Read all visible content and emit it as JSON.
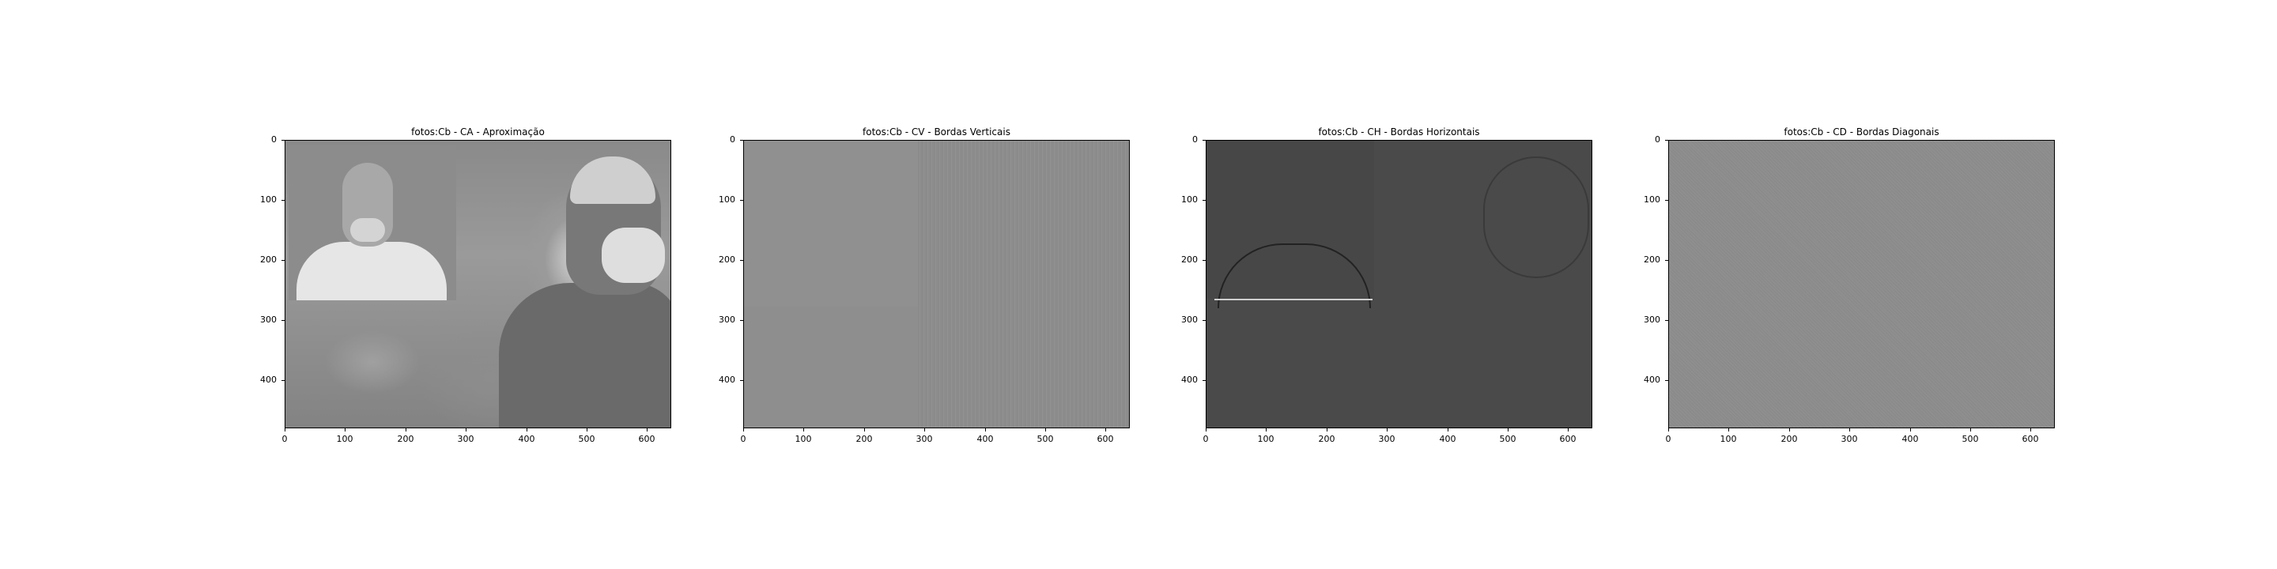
{
  "panels": [
    {
      "title": "fotos:Cb - CA - Aproximação",
      "image": "approximation-coefficients"
    },
    {
      "title": "fotos:Cb - CV - Bordas Verticais",
      "image": "vertical-detail-coefficients"
    },
    {
      "title": "fotos:Cb - CH - Bordas Horizontais",
      "image": "horizontal-detail-coefficients"
    },
    {
      "title": "fotos:Cb - CD - Bordas Diagonais",
      "image": "diagonal-detail-coefficients"
    }
  ],
  "axes": {
    "y_ticks": [
      "0",
      "100",
      "200",
      "300",
      "400"
    ],
    "x_ticks": [
      "0",
      "100",
      "200",
      "300",
      "400",
      "500",
      "600"
    ],
    "x_range": [
      0,
      640
    ],
    "y_range": [
      0,
      480
    ]
  }
}
